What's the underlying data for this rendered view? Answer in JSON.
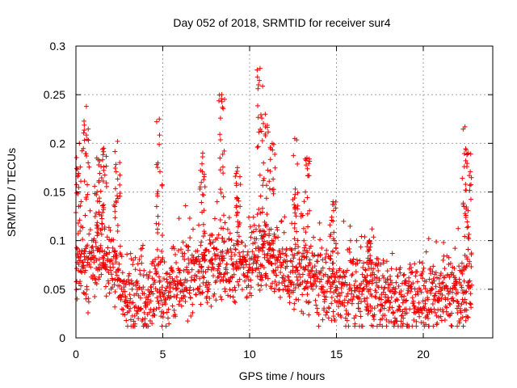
{
  "chart_data": {
    "type": "scatter",
    "title": "Day 052 of 2018, SRMTID for receiver sur4",
    "xlabel": "GPS time / hours",
    "ylabel": "SRMTID / TECUs",
    "xlim": [
      0,
      24
    ],
    "ylim": [
      0,
      0.3
    ],
    "x_ticks": [
      0,
      5,
      10,
      15,
      20
    ],
    "x_tick_labels": [
      "0",
      "5",
      "10",
      "15",
      "20"
    ],
    "y_ticks": [
      0,
      0.05,
      0.1,
      0.15,
      0.2,
      0.25,
      0.3
    ],
    "y_tick_labels": [
      "0",
      "0.05",
      "0.1",
      "0.15",
      "0.2",
      "0.25",
      "0.3"
    ],
    "grid": true,
    "marker": "plus",
    "color": "#ee0000",
    "x_data_end": 22.8,
    "baseline_profile": [
      [
        0.0,
        0.075
      ],
      [
        0.5,
        0.075
      ],
      [
        1.0,
        0.075
      ],
      [
        1.5,
        0.085
      ],
      [
        2.0,
        0.075
      ],
      [
        2.5,
        0.06
      ],
      [
        3.0,
        0.045
      ],
      [
        3.5,
        0.04
      ],
      [
        4.0,
        0.04
      ],
      [
        4.5,
        0.045
      ],
      [
        5.0,
        0.045
      ],
      [
        5.5,
        0.05
      ],
      [
        6.0,
        0.06
      ],
      [
        6.5,
        0.065
      ],
      [
        7.0,
        0.07
      ],
      [
        7.5,
        0.075
      ],
      [
        8.0,
        0.075
      ],
      [
        8.5,
        0.075
      ],
      [
        9.0,
        0.07
      ],
      [
        9.5,
        0.075
      ],
      [
        10.0,
        0.08
      ],
      [
        10.5,
        0.085
      ],
      [
        11.0,
        0.08
      ],
      [
        11.5,
        0.075
      ],
      [
        12.0,
        0.065
      ],
      [
        12.5,
        0.065
      ],
      [
        13.0,
        0.07
      ],
      [
        13.5,
        0.06
      ],
      [
        14.0,
        0.055
      ],
      [
        14.5,
        0.055
      ],
      [
        15.0,
        0.05
      ],
      [
        15.5,
        0.045
      ],
      [
        16.0,
        0.045
      ],
      [
        16.5,
        0.05
      ],
      [
        17.0,
        0.045
      ],
      [
        17.5,
        0.045
      ],
      [
        18.0,
        0.04
      ],
      [
        18.5,
        0.04
      ],
      [
        19.0,
        0.04
      ],
      [
        19.5,
        0.04
      ],
      [
        20.0,
        0.04
      ],
      [
        20.5,
        0.045
      ],
      [
        21.0,
        0.045
      ],
      [
        21.5,
        0.045
      ],
      [
        22.0,
        0.045
      ],
      [
        22.5,
        0.05
      ],
      [
        22.8,
        0.05
      ]
    ],
    "scatter_spread": 0.03,
    "spike_clusters": [
      {
        "x": 0.2,
        "ymax": 0.2
      },
      {
        "x": 0.6,
        "ymax": 0.238
      },
      {
        "x": 1.2,
        "ymax": 0.185
      },
      {
        "x": 1.6,
        "ymax": 0.195
      },
      {
        "x": 2.4,
        "ymax": 0.202
      },
      {
        "x": 4.8,
        "ymax": 0.225
      },
      {
        "x": 7.3,
        "ymax": 0.19
      },
      {
        "x": 8.4,
        "ymax": 0.25
      },
      {
        "x": 9.3,
        "ymax": 0.175
      },
      {
        "x": 10.6,
        "ymax": 0.277
      },
      {
        "x": 10.9,
        "ymax": 0.23
      },
      {
        "x": 11.3,
        "ymax": 0.2
      },
      {
        "x": 12.6,
        "ymax": 0.205
      },
      {
        "x": 13.3,
        "ymax": 0.185
      },
      {
        "x": 14.8,
        "ymax": 0.14
      },
      {
        "x": 16.9,
        "ymax": 0.1
      },
      {
        "x": 22.4,
        "ymax": 0.217
      },
      {
        "x": 22.6,
        "ymax": 0.19
      }
    ],
    "notes": "Dense red '+' markers, values read approximately from the figure."
  }
}
